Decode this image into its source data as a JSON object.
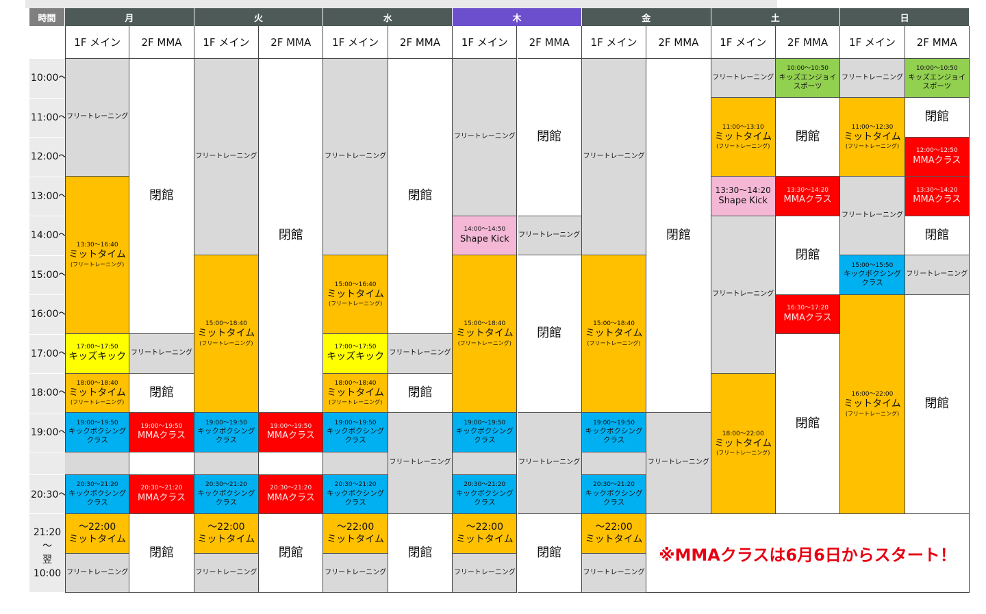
{
  "header": {
    "time_label": "時間"
  },
  "days": [
    {
      "name": "月",
      "columns": [
        {
          "header": "1F メイン",
          "blocks": [
            {
              "lines": [
                "フリートレーニング"
              ]
            },
            {
              "lines": [
                "13:30～16:40",
                "ミットタイム",
                "(フリートレーニング)"
              ]
            },
            {
              "lines": [
                "17:00～17:50",
                "キッズキック"
              ]
            },
            {
              "lines": [
                "18:00～18:40",
                "ミットタイム",
                "(フリートレーニング)"
              ]
            },
            {
              "lines": [
                "19:00～19:50",
                "キックボクシング",
                "クラス"
              ]
            },
            {
              "lines": [
                "20:30～21:20",
                "キックボクシング",
                "クラス"
              ]
            },
            {
              "lines": [
                "～22:00",
                "ミットタイム"
              ]
            },
            {
              "lines": [
                "フリートレーニング"
              ]
            }
          ]
        },
        {
          "header": "2F MMA",
          "blocks": [
            {
              "lines": [
                "閉館"
              ]
            },
            {
              "lines": [
                "フリートレーニング"
              ]
            },
            {
              "lines": [
                "閉館"
              ]
            },
            {
              "lines": [
                "19:00～19:50",
                "MMAクラス"
              ]
            },
            {
              "lines": [
                "20:30～21:20",
                "MMAクラス"
              ]
            },
            {
              "lines": [
                "閉館"
              ]
            }
          ]
        }
      ]
    },
    {
      "name": "火",
      "columns": [
        {
          "header": "1F メイン",
          "blocks": [
            {
              "lines": [
                "フリートレーニング"
              ]
            },
            {
              "lines": [
                "15:00～18:40",
                "ミットタイム",
                "(フリートレーニング)"
              ]
            },
            {
              "lines": [
                "19:00～19:50",
                "キックボクシング",
                "クラス"
              ]
            },
            {
              "lines": [
                "20:30～21:20",
                "キックボクシング",
                "クラス"
              ]
            },
            {
              "lines": [
                "～22:00",
                "ミットタイム"
              ]
            },
            {
              "lines": [
                "フリートレーニング"
              ]
            }
          ]
        },
        {
          "header": "2F MMA",
          "blocks": [
            {
              "lines": [
                "閉館"
              ]
            },
            {
              "lines": [
                "19:00～19:50",
                "MMAクラス"
              ]
            },
            {
              "lines": [
                "20:30～21:20",
                "MMAクラス"
              ]
            },
            {
              "lines": [
                "閉館"
              ]
            }
          ]
        }
      ]
    },
    {
      "name": "水",
      "columns": [
        {
          "header": "1F メイン",
          "blocks": [
            {
              "lines": [
                "フリートレーニング"
              ]
            },
            {
              "lines": [
                "15:00～16:40",
                "ミットタイム",
                "(フリートレーニング)"
              ]
            },
            {
              "lines": [
                "17:00～17:50",
                "キッズキック"
              ]
            },
            {
              "lines": [
                "18:00～18:40",
                "ミットタイム",
                "(フリートレーニング)"
              ]
            },
            {
              "lines": [
                "19:00～19:50",
                "キックボクシング",
                "クラス"
              ]
            },
            {
              "lines": [
                "20:30～21:20",
                "キックボクシング",
                "クラス"
              ]
            },
            {
              "lines": [
                "～22:00",
                "ミットタイム"
              ]
            },
            {
              "lines": [
                "フリートレーニング"
              ]
            }
          ]
        },
        {
          "header": "2F MMA",
          "blocks": [
            {
              "lines": [
                "閉館"
              ]
            },
            {
              "lines": [
                "フリートレーニング"
              ]
            },
            {
              "lines": [
                "閉館"
              ]
            },
            {
              "lines": [
                "フリートレーニング"
              ]
            },
            {
              "lines": [
                "閉館"
              ]
            }
          ]
        }
      ]
    },
    {
      "name": "木",
      "columns": [
        {
          "header": "1F メイン",
          "blocks": [
            {
              "lines": [
                "フリートレーニング"
              ]
            },
            {
              "lines": [
                "14:00～14:50",
                "Shape Kick"
              ]
            },
            {
              "lines": [
                "15:00～18:40",
                "ミットタイム",
                "(フリートレーニング)"
              ]
            },
            {
              "lines": [
                "19:00～19:50",
                "キックボクシング",
                "クラス"
              ]
            },
            {
              "lines": [
                "20:30～21:20",
                "キックボクシング",
                "クラス"
              ]
            },
            {
              "lines": [
                "～22:00",
                "ミットタイム"
              ]
            },
            {
              "lines": [
                "フリートレーニング"
              ]
            }
          ]
        },
        {
          "header": "2F MMA",
          "blocks": [
            {
              "lines": [
                "閉館"
              ]
            },
            {
              "lines": [
                "フリートレーニング"
              ]
            },
            {
              "lines": [
                "閉館"
              ]
            },
            {
              "lines": [
                "フリートレーニング"
              ]
            },
            {
              "lines": [
                "閉館"
              ]
            }
          ]
        }
      ]
    },
    {
      "name": "金",
      "columns": [
        {
          "header": "1F メイン",
          "blocks": [
            {
              "lines": [
                "フリートレーニング"
              ]
            },
            {
              "lines": [
                "15:00～18:40",
                "ミットタイム",
                "(フリートレーニング)"
              ]
            },
            {
              "lines": [
                "19:00～19:50",
                "キックボクシング",
                "クラス"
              ]
            },
            {
              "lines": [
                "20:30～21:20",
                "キックボクシング",
                "クラス"
              ]
            },
            {
              "lines": [
                "～22:00",
                "ミットタイム"
              ]
            },
            {
              "lines": [
                "フリートレーニング"
              ]
            }
          ]
        },
        {
          "header": "2F MMA",
          "blocks": [
            {
              "lines": [
                "閉館"
              ]
            },
            {
              "lines": [
                "フリートレーニング"
              ]
            }
          ]
        }
      ]
    },
    {
      "name": "土",
      "columns": [
        {
          "header": "1F メイン",
          "blocks": [
            {
              "lines": [
                "フリートレーニング"
              ]
            },
            {
              "lines": [
                "11:00～13:10",
                "ミットタイム",
                "(フリートレーニング)"
              ]
            },
            {
              "lines": [
                "13:30～14:20",
                "Shape Kick"
              ]
            },
            {
              "lines": [
                "フリートレーニング"
              ]
            },
            {
              "lines": [
                "18:00～22:00",
                "ミットタイム",
                "(フリートレーニング)"
              ]
            }
          ]
        },
        {
          "header": "2F MMA",
          "blocks": [
            {
              "lines": [
                "10:00～10:50",
                "キッズエンジョイ",
                "スポーツ"
              ]
            },
            {
              "lines": [
                "閉館"
              ]
            },
            {
              "lines": [
                "13:30～14:20",
                "MMAクラス"
              ]
            },
            {
              "lines": [
                "閉館"
              ]
            },
            {
              "lines": [
                "16:30～17:20",
                "MMAクラス"
              ]
            },
            {
              "lines": [
                "閉館"
              ]
            }
          ]
        }
      ]
    },
    {
      "name": "日",
      "columns": [
        {
          "header": "1F メイン",
          "blocks": [
            {
              "lines": [
                "フリートレーニング"
              ]
            },
            {
              "lines": [
                "11:00～12:30",
                "ミットタイム",
                "(フリートレーニング)"
              ]
            },
            {
              "lines": [
                "フリートレーニング"
              ]
            },
            {
              "lines": [
                "15:00～15:50",
                "キックボクシング",
                "クラス"
              ]
            },
            {
              "lines": [
                "16:00～22:00",
                "ミットタイム",
                "(フリートレーニング)"
              ]
            }
          ]
        },
        {
          "header": "2F MMA",
          "blocks": [
            {
              "lines": [
                "10:00～10:50",
                "キッズエンジョイ",
                "スポーツ"
              ]
            },
            {
              "lines": [
                "閉館"
              ]
            },
            {
              "lines": [
                "12:00～12:50",
                "MMAクラス"
              ]
            },
            {
              "lines": [
                "13:30～14:20",
                "MMAクラス"
              ]
            },
            {
              "lines": [
                "閉館"
              ]
            },
            {
              "lines": [
                "フリートレーニング"
              ]
            },
            {
              "lines": [
                "閉館"
              ]
            }
          ]
        }
      ]
    }
  ],
  "time_labels": [
    "10:00～",
    "11:00～",
    "12:00～",
    "13:00～",
    "14:00～",
    "15:00～",
    "16:00～",
    "17:00～",
    "18:00～",
    "19:00～",
    "20:30～"
  ],
  "overnight_label": [
    "21:20",
    "～",
    "翌",
    "10:00"
  ],
  "note": "※MMAクラスは6月6日からスタート！"
}
